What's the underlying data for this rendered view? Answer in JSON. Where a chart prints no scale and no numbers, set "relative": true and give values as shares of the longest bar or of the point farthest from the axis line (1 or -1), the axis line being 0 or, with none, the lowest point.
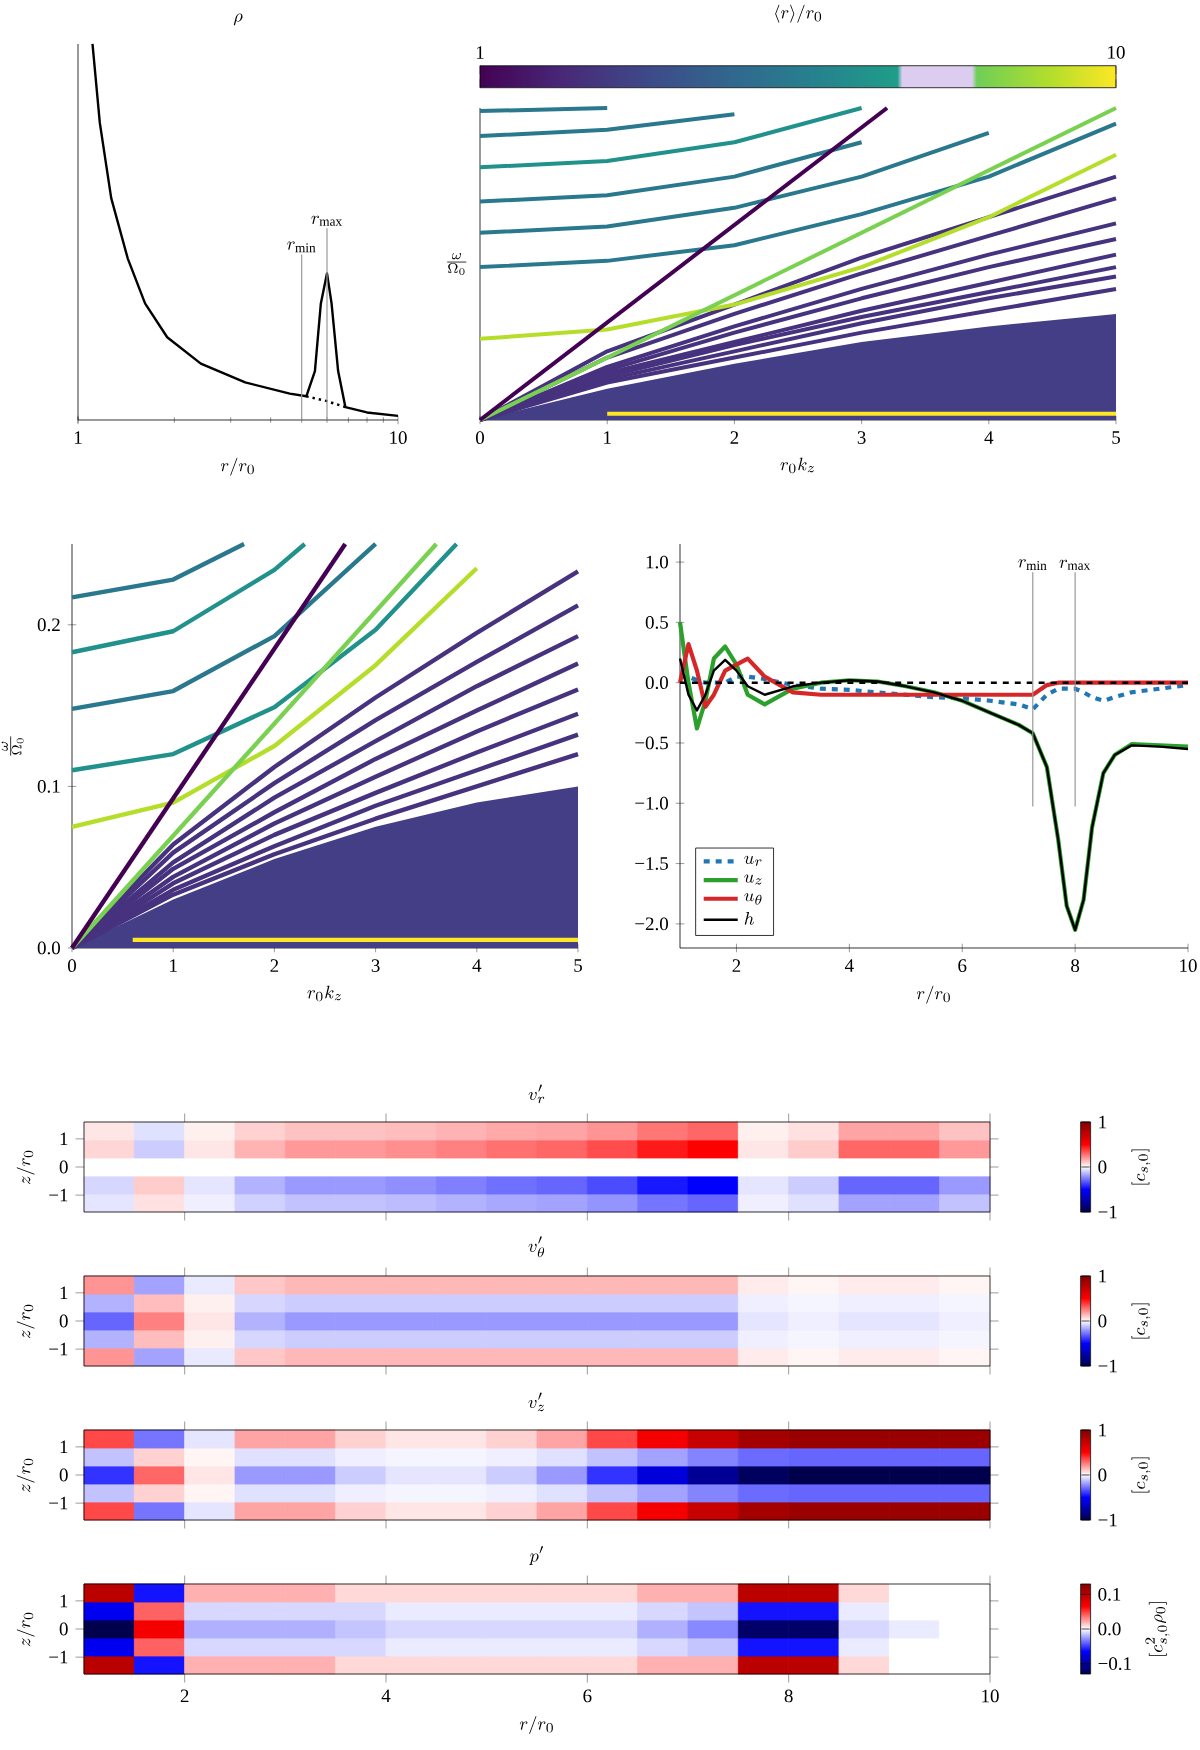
{
  "chart_data": [
    {
      "type": "line",
      "title": "\\rho",
      "xlabel": "r/r_0",
      "log": "x",
      "relative": true,
      "xlim": [
        1,
        10
      ],
      "xticks": [
        1,
        10
      ],
      "series": [
        {
          "color": "#000000",
          "x": [
            1.11,
            1.17,
            1.27,
            1.43,
            1.62,
            1.9,
            2.42,
            3.33,
            4.59,
            5.17,
            5.5,
            5.74,
            6.0,
            6.2,
            6.5,
            6.85,
            8.0,
            10.0
          ],
          "values": [
            1.0,
            0.79,
            0.59,
            0.43,
            0.31,
            0.22,
            0.15,
            0.1,
            0.07,
            0.063,
            0.13,
            0.31,
            0.39,
            0.31,
            0.13,
            0.034,
            0.02,
            0.011
          ]
        },
        {
          "color": "#000000",
          "line_style": "dotted",
          "x": [
            5.17,
            6.0,
            6.85
          ],
          "values": [
            0.063,
            0.05,
            0.034
          ]
        }
      ],
      "ref_lines": [
        {
          "axis": "x",
          "value": 5,
          "label": "r_{\\min}",
          "color": "#999999"
        },
        {
          "axis": "x",
          "value": 6,
          "label": "r_{\\max}",
          "color": "#999999"
        }
      ]
    },
    {
      "type": "line",
      "xlabel": "r_0k_z",
      "ylabel": "\\frac{\\omega}{\\Omega_0}",
      "relative": true,
      "xlim": [
        0,
        5
      ],
      "xticks": [
        0,
        1,
        2,
        3,
        4,
        5
      ],
      "clabel": "\\langle r\\rangle/r_0",
      "clim": [
        1,
        10
      ],
      "cticks": [
        1,
        10
      ],
      "x": [
        0,
        1,
        2,
        3,
        4,
        5
      ],
      "series": [
        {
          "type": "area",
          "color": "#433e85",
          "values": [
            0,
            0.1,
            0.18,
            0.25,
            0.3,
            0.34
          ]
        },
        {
          "color": "#fde725",
          "x": [
            1,
            5
          ],
          "values": [
            0.02,
            0.02
          ]
        },
        {
          "color": "#46327e",
          "values": [
            0,
            0.22,
            0.37,
            0.52,
            0.65,
            0.78
          ]
        },
        {
          "color": "#46327e",
          "values": [
            0,
            0.2,
            0.34,
            0.47,
            0.59,
            0.71
          ]
        },
        {
          "color": "#46327e",
          "values": [
            0,
            0.17,
            0.3,
            0.42,
            0.53,
            0.63
          ]
        },
        {
          "color": "#46327e",
          "values": [
            0,
            0.16,
            0.28,
            0.39,
            0.49,
            0.58
          ]
        },
        {
          "color": "#46327e",
          "values": [
            0,
            0.15,
            0.25,
            0.35,
            0.44,
            0.53
          ]
        },
        {
          "color": "#46327e",
          "values": [
            0,
            0.14,
            0.24,
            0.33,
            0.41,
            0.49
          ]
        },
        {
          "color": "#46327e",
          "values": [
            0,
            0.13,
            0.22,
            0.31,
            0.39,
            0.46
          ]
        },
        {
          "color": "#46327e",
          "values": [
            0,
            0.12,
            0.2,
            0.28,
            0.35,
            0.42
          ]
        },
        {
          "color": "#2a788e",
          "values": [
            0.99,
            1.0,
            null,
            null,
            null,
            null
          ]
        },
        {
          "color": "#2a788e",
          "values": [
            0.91,
            0.93,
            0.98,
            null,
            null,
            null
          ]
        },
        {
          "color": "#21918c",
          "values": [
            0.81,
            0.83,
            0.89,
            1.0,
            null,
            null
          ]
        },
        {
          "color": "#2a788e",
          "values": [
            0.7,
            0.72,
            0.78,
            0.89,
            null,
            null
          ]
        },
        {
          "color": "#2a788e",
          "values": [
            0.6,
            0.62,
            0.68,
            0.78,
            0.92,
            null
          ]
        },
        {
          "color": "#2a788e",
          "values": [
            0.49,
            0.51,
            0.56,
            0.66,
            0.78,
            0.95
          ]
        },
        {
          "color": "#b5de2b",
          "values": [
            0.26,
            0.29,
            0.37,
            0.49,
            0.65,
            0.85
          ]
        },
        {
          "color": "#7ad151",
          "x": [
            0,
            5
          ],
          "values": [
            0,
            1.0
          ]
        },
        {
          "color": "#440154",
          "x": [
            0,
            3.2
          ],
          "values": [
            0,
            1.0
          ]
        }
      ]
    },
    {
      "type": "line",
      "xlabel": "r_0k_z",
      "ylabel": "\\frac{\\omega}{\\Omega_0}",
      "xlim": [
        0,
        5
      ],
      "xticks": [
        0,
        1,
        2,
        3,
        4,
        5
      ],
      "ylim": [
        0,
        0.25
      ],
      "yticks": [
        {
          "value": 0,
          "label": "0.0"
        },
        0.1,
        0.2
      ],
      "x": [
        0,
        1,
        2,
        3,
        4,
        5
      ],
      "series": [
        {
          "type": "area",
          "color": "#433e85",
          "values": [
            0,
            0.03,
            0.055,
            0.075,
            0.09,
            0.1
          ]
        },
        {
          "color": "#fde725",
          "x": [
            0.6,
            5
          ],
          "values": [
            0.005,
            0.005
          ]
        },
        {
          "color": "#46327e",
          "values": [
            0,
            0.064,
            0.112,
            0.155,
            0.195,
            0.233
          ]
        },
        {
          "color": "#46327e",
          "values": [
            0,
            0.059,
            0.102,
            0.141,
            0.177,
            0.212
          ]
        },
        {
          "color": "#46327e",
          "values": [
            0,
            0.053,
            0.093,
            0.128,
            0.162,
            0.193
          ]
        },
        {
          "color": "#46327e",
          "values": [
            0,
            0.049,
            0.084,
            0.117,
            0.147,
            0.176
          ]
        },
        {
          "color": "#46327e",
          "values": [
            0,
            0.044,
            0.077,
            0.106,
            0.134,
            0.16
          ]
        },
        {
          "color": "#46327e",
          "values": [
            0,
            0.04,
            0.07,
            0.096,
            0.121,
            0.145
          ]
        },
        {
          "color": "#46327e",
          "values": [
            0,
            0.036,
            0.063,
            0.088,
            0.11,
            0.132
          ]
        },
        {
          "color": "#46327e",
          "values": [
            0,
            0.033,
            0.058,
            0.08,
            0.1,
            0.12
          ]
        },
        {
          "color": "#2a788e",
          "x": [
            0,
            1,
            1.7
          ],
          "values": [
            0.217,
            0.228,
            0.25
          ]
        },
        {
          "color": "#21918c",
          "x": [
            0,
            1,
            2,
            2.3
          ],
          "values": [
            0.183,
            0.196,
            0.234,
            0.25
          ]
        },
        {
          "color": "#2a788e",
          "x": [
            0,
            1,
            2,
            3
          ],
          "values": [
            0.148,
            0.159,
            0.193,
            0.25
          ]
        },
        {
          "color": "#21918c",
          "x": [
            0,
            1,
            2,
            3,
            3.8
          ],
          "values": [
            0.11,
            0.12,
            0.149,
            0.197,
            0.25
          ]
        },
        {
          "color": "#b5de2b",
          "x": [
            0,
            1,
            2,
            3,
            4
          ],
          "values": [
            0.075,
            0.09,
            0.125,
            0.175,
            0.235
          ]
        },
        {
          "color": "#7ad151",
          "x": [
            0,
            3.6
          ],
          "values": [
            0,
            0.25
          ]
        },
        {
          "color": "#440154",
          "x": [
            0,
            2.7
          ],
          "values": [
            0,
            0.25
          ]
        }
      ]
    },
    {
      "type": "line",
      "xlabel": "r/r_0",
      "xlim": [
        1,
        10
      ],
      "xticks": [
        2,
        4,
        6,
        8,
        10
      ],
      "ylim": [
        -2.2,
        1.15
      ],
      "yticks": [
        {
          "value": -2,
          "label": "−2.0"
        },
        {
          "value": -1.5,
          "label": "−1.5"
        },
        {
          "value": -1,
          "label": "−1.0"
        },
        {
          "value": -0.5,
          "label": "−0.5"
        },
        {
          "value": 0,
          "label": "0.0"
        },
        0.5,
        {
          "value": 1,
          "label": "1.0"
        }
      ],
      "legend": "bottom left",
      "x": [
        1.0,
        1.15,
        1.3,
        1.45,
        1.6,
        1.8,
        2.0,
        2.2,
        2.5,
        3.0,
        3.5,
        4.0,
        4.5,
        5.0,
        5.5,
        6.0,
        6.5,
        7.0,
        7.25,
        7.5,
        7.7,
        7.85,
        8.0,
        8.15,
        8.3,
        8.5,
        8.7,
        9.0,
        9.5,
        10.0
      ],
      "series": [
        {
          "name": "u_r",
          "color": "#1f77b4",
          "line_style": "dashed",
          "values": [
            0.05,
            0.05,
            0.02,
            0.0,
            0.0,
            0.0,
            0.05,
            0.05,
            0.03,
            -0.02,
            -0.05,
            -0.06,
            -0.08,
            -0.1,
            -0.12,
            -0.13,
            -0.15,
            -0.18,
            -0.22,
            -0.1,
            -0.05,
            -0.05,
            -0.05,
            -0.08,
            -0.12,
            -0.15,
            -0.12,
            -0.08,
            -0.05,
            -0.02
          ]
        },
        {
          "name": "u_z",
          "color": "#2ca02c",
          "values": [
            0.5,
            0.0,
            -0.38,
            -0.15,
            0.2,
            0.3,
            0.15,
            -0.1,
            -0.18,
            -0.05,
            0.0,
            0.02,
            0.01,
            -0.03,
            -0.08,
            -0.15,
            -0.25,
            -0.35,
            -0.42,
            -0.7,
            -1.3,
            -1.85,
            -2.05,
            -1.8,
            -1.2,
            -0.75,
            -0.6,
            -0.51,
            -0.52,
            -0.53
          ]
        },
        {
          "name": "u_\\theta",
          "color": "#d62728",
          "values": [
            0.0,
            0.32,
            0.1,
            -0.2,
            -0.1,
            0.1,
            0.15,
            0.2,
            0.05,
            -0.08,
            -0.1,
            -0.1,
            -0.1,
            -0.1,
            -0.1,
            -0.1,
            -0.1,
            -0.1,
            -0.1,
            -0.02,
            0.0,
            0.0,
            0.0,
            0.0,
            0.0,
            0.0,
            0.0,
            0.0,
            0.0,
            0.0
          ]
        },
        {
          "name": "h",
          "color": "#000000",
          "values": [
            0.2,
            -0.1,
            -0.23,
            -0.1,
            0.1,
            0.19,
            0.1,
            -0.03,
            -0.1,
            -0.03,
            0.0,
            0.02,
            0.01,
            -0.03,
            -0.08,
            -0.15,
            -0.25,
            -0.35,
            -0.42,
            -0.7,
            -1.3,
            -1.85,
            -2.05,
            -1.8,
            -1.2,
            -0.75,
            -0.6,
            -0.52,
            -0.53,
            -0.55
          ]
        }
      ],
      "ref_lines": [
        {
          "axis": "y",
          "value": 0,
          "color": "#000000",
          "line_style": "dashed"
        },
        {
          "axis": "x",
          "value": 7.25,
          "label": "r_{\\min}",
          "color": "#999999"
        },
        {
          "axis": "x",
          "value": 8,
          "label": "r_{\\max}",
          "color": "#999999"
        }
      ]
    },
    {
      "type": "heatmap",
      "title": "v'_r",
      "ylabel": "z/r_0",
      "tick_labels": "y",
      "xlim": [
        1,
        10
      ],
      "xticks": [
        2,
        4,
        6,
        8,
        10
      ],
      "ylim": [
        -1.6,
        1.6
      ],
      "yticks": [
        {
          "value": -1,
          "label": "−1"
        },
        0,
        1
      ],
      "clim": [
        -1,
        1
      ],
      "cticks": [
        {
          "value": -1,
          "label": "−1"
        },
        0,
        1
      ],
      "clabel": "[c_{s,0}]",
      "x": [
        1.25,
        1.75,
        2.25,
        2.75,
        3.25,
        3.75,
        4.25,
        4.75,
        5.25,
        5.75,
        6.25,
        6.75,
        7.25,
        7.75,
        8.25,
        8.75,
        9.25,
        9.75
      ],
      "y": [
        1.28,
        0.64,
        0,
        -0.64,
        -1.28
      ],
      "cells": [
        [
          0.05,
          -0.06,
          0.03,
          0.09,
          0.12,
          0.12,
          0.13,
          0.15,
          0.17,
          0.18,
          0.21,
          0.27,
          0.3,
          0.03,
          0.06,
          0.18,
          0.18,
          0.12
        ],
        [
          0.08,
          -0.1,
          0.05,
          0.15,
          0.2,
          0.2,
          0.22,
          0.25,
          0.28,
          0.3,
          0.35,
          0.45,
          0.5,
          0.05,
          0.1,
          0.3,
          0.3,
          0.2
        ],
        [
          0,
          0,
          0,
          0,
          0,
          0,
          0,
          0,
          0,
          0,
          0,
          0,
          0,
          0,
          0,
          0,
          0,
          0
        ],
        [
          -0.08,
          0.1,
          -0.05,
          -0.15,
          -0.2,
          -0.2,
          -0.22,
          -0.25,
          -0.28,
          -0.3,
          -0.35,
          -0.45,
          -0.5,
          -0.05,
          -0.1,
          -0.3,
          -0.3,
          -0.2
        ],
        [
          -0.05,
          0.06,
          -0.03,
          -0.09,
          -0.12,
          -0.12,
          -0.13,
          -0.15,
          -0.17,
          -0.18,
          -0.21,
          -0.27,
          -0.3,
          -0.03,
          -0.06,
          -0.18,
          -0.18,
          -0.12
        ]
      ]
    },
    {
      "type": "heatmap",
      "title": "v'_\\theta",
      "ylabel": "z/r_0",
      "tick_labels": "y",
      "xlim": [
        1,
        10
      ],
      "xticks": [
        2,
        4,
        6,
        8,
        10
      ],
      "ylim": [
        -1.6,
        1.6
      ],
      "yticks": [
        {
          "value": -1,
          "label": "−1"
        },
        0,
        1
      ],
      "clim": [
        -1,
        1
      ],
      "cticks": [
        {
          "value": -1,
          "label": "−1"
        },
        0,
        1
      ],
      "clabel": "[c_{s,0}]",
      "x": [
        1.25,
        1.75,
        2.25,
        2.75,
        3.25,
        3.75,
        4.25,
        4.75,
        5.25,
        5.75,
        6.25,
        6.75,
        7.25,
        7.75,
        8.25,
        8.75,
        9.25,
        9.75
      ],
      "y": [
        1.28,
        0.64,
        0,
        -0.64,
        -1.28
      ],
      "cells": [
        [
          0.21,
          -0.18,
          -0.04,
          0.11,
          0.14,
          0.14,
          0.14,
          0.14,
          0.14,
          0.14,
          0.14,
          0.14,
          0.14,
          0.04,
          0.02,
          0.04,
          0.04,
          0.02
        ],
        [
          -0.15,
          0.13,
          0.03,
          -0.08,
          -0.1,
          -0.1,
          -0.1,
          -0.1,
          -0.1,
          -0.1,
          -0.1,
          -0.1,
          -0.1,
          -0.03,
          -0.02,
          -0.03,
          -0.03,
          -0.02
        ],
        [
          -0.3,
          0.25,
          0.05,
          -0.15,
          -0.2,
          -0.2,
          -0.2,
          -0.2,
          -0.2,
          -0.2,
          -0.2,
          -0.2,
          -0.2,
          -0.05,
          -0.03,
          -0.05,
          -0.05,
          -0.03
        ],
        [
          -0.15,
          0.13,
          0.03,
          -0.08,
          -0.1,
          -0.1,
          -0.1,
          -0.1,
          -0.1,
          -0.1,
          -0.1,
          -0.1,
          -0.1,
          -0.03,
          -0.02,
          -0.03,
          -0.03,
          -0.02
        ],
        [
          0.21,
          -0.18,
          -0.04,
          0.11,
          0.14,
          0.14,
          0.14,
          0.14,
          0.14,
          0.14,
          0.14,
          0.14,
          0.14,
          0.04,
          0.02,
          0.04,
          0.04,
          0.02
        ]
      ]
    },
    {
      "type": "heatmap",
      "title": "v'_z",
      "ylabel": "z/r_0",
      "tick_labels": "y",
      "xlim": [
        1,
        10
      ],
      "xticks": [
        2,
        4,
        6,
        8,
        10
      ],
      "ylim": [
        -1.6,
        1.6
      ],
      "yticks": [
        {
          "value": -1,
          "label": "−1"
        },
        0,
        1
      ],
      "clim": [
        -1,
        1
      ],
      "cticks": [
        {
          "value": -1,
          "label": "−1"
        },
        0,
        1
      ],
      "clabel": "[c_{s,0}]",
      "x": [
        1.25,
        1.75,
        2.25,
        2.75,
        3.25,
        3.75,
        4.25,
        4.75,
        5.25,
        5.75,
        6.25,
        6.75,
        7.25,
        7.75,
        8.25,
        8.75,
        9.25,
        9.75
      ],
      "y": [
        1.28,
        0.64,
        0,
        -0.64,
        -1.28
      ],
      "cells": [
        [
          0.36,
          -0.27,
          -0.05,
          0.18,
          0.18,
          0.09,
          0.05,
          0.05,
          0.09,
          0.18,
          0.36,
          0.54,
          0.72,
          0.86,
          0.9,
          0.9,
          0.9,
          0.9
        ],
        [
          -0.12,
          0.09,
          0.02,
          -0.06,
          -0.06,
          -0.03,
          -0.02,
          -0.02,
          -0.03,
          -0.06,
          -0.12,
          -0.18,
          -0.24,
          -0.29,
          -0.3,
          -0.3,
          -0.3,
          -0.3
        ],
        [
          -0.4,
          0.3,
          0.05,
          -0.2,
          -0.2,
          -0.1,
          -0.05,
          -0.05,
          -0.1,
          -0.2,
          -0.4,
          -0.6,
          -0.8,
          -0.95,
          -1.0,
          -1.0,
          -1.0,
          -1.0
        ],
        [
          -0.12,
          0.09,
          0.02,
          -0.06,
          -0.06,
          -0.03,
          -0.02,
          -0.02,
          -0.03,
          -0.06,
          -0.12,
          -0.18,
          -0.24,
          -0.29,
          -0.3,
          -0.3,
          -0.3,
          -0.3
        ],
        [
          0.36,
          -0.27,
          -0.05,
          0.18,
          0.18,
          0.09,
          0.05,
          0.05,
          0.09,
          0.18,
          0.36,
          0.54,
          0.72,
          0.86,
          0.9,
          0.9,
          0.9,
          0.9
        ]
      ]
    },
    {
      "type": "heatmap",
      "title": "p'",
      "ylabel": "z/r_0",
      "xlabel": "r/r_0",
      "xlim": [
        1,
        10
      ],
      "xticks": [
        2,
        4,
        6,
        8,
        10
      ],
      "ylim": [
        -1.6,
        1.6
      ],
      "yticks": [
        {
          "value": -1,
          "label": "−1"
        },
        0,
        1
      ],
      "clim": [
        -0.13,
        0.13
      ],
      "cticks": [
        {
          "value": -0.1,
          "label": "−0.1"
        },
        {
          "value": 0,
          "label": "0.0"
        },
        0.1
      ],
      "clabel": "[c_{s,0}^2\\rho_0]",
      "x": [
        1.25,
        1.75,
        2.25,
        2.75,
        3.25,
        3.75,
        4.25,
        4.75,
        5.25,
        5.75,
        6.25,
        6.75,
        7.25,
        7.75,
        8.25,
        8.75,
        9.25,
        9.75
      ],
      "y": [
        1.28,
        0.64,
        0,
        -0.64,
        -1.28
      ],
      "cells": [
        [
          0.1,
          -0.06,
          0.02,
          0.02,
          0.02,
          0.01,
          0.01,
          0.01,
          0.01,
          0.01,
          0.01,
          0.02,
          0.02,
          0.1,
          0.1,
          0.01,
          0.0,
          0.0
        ],
        [
          -0.07,
          0.04,
          -0.01,
          -0.01,
          -0.01,
          -0.01,
          -0.005,
          -0.005,
          -0.005,
          -0.005,
          -0.005,
          -0.01,
          -0.015,
          -0.06,
          -0.06,
          -0.005,
          0.0,
          0.0
        ],
        [
          -0.13,
          0.07,
          -0.02,
          -0.02,
          -0.02,
          -0.015,
          -0.01,
          -0.01,
          -0.01,
          -0.01,
          -0.01,
          -0.02,
          -0.03,
          -0.12,
          -0.12,
          -0.01,
          -0.005,
          0.0
        ],
        [
          -0.07,
          0.04,
          -0.01,
          -0.01,
          -0.01,
          -0.01,
          -0.005,
          -0.005,
          -0.005,
          -0.005,
          -0.005,
          -0.01,
          -0.015,
          -0.06,
          -0.06,
          -0.005,
          0.0,
          0.0
        ],
        [
          0.1,
          -0.06,
          0.02,
          0.02,
          0.02,
          0.01,
          0.01,
          0.01,
          0.01,
          0.01,
          0.01,
          0.02,
          0.02,
          0.1,
          0.1,
          0.01,
          0.0,
          0.0
        ]
      ]
    }
  ]
}
